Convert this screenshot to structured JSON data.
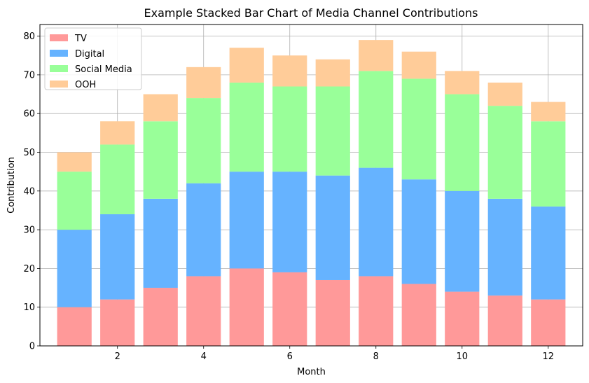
{
  "chart_data": {
    "type": "bar",
    "stacked": true,
    "title": "Example Stacked Bar Chart of Media Channel Contributions",
    "xlabel": "Month",
    "ylabel": "Contribution",
    "x": [
      1,
      2,
      3,
      4,
      5,
      6,
      7,
      8,
      9,
      10,
      11,
      12
    ],
    "x_ticks": [
      2,
      4,
      6,
      8,
      10,
      12
    ],
    "y_ticks": [
      0,
      10,
      20,
      30,
      40,
      50,
      60,
      70,
      80
    ],
    "xlim": [
      0.2,
      12.8
    ],
    "ylim": [
      0,
      83
    ],
    "grid": true,
    "legend_position": "top-left",
    "series": [
      {
        "name": "TV",
        "color": "#ff9999",
        "values": [
          10,
          12,
          15,
          18,
          20,
          19,
          17,
          18,
          16,
          14,
          13,
          12
        ]
      },
      {
        "name": "Digital",
        "color": "#66b3ff",
        "values": [
          20,
          22,
          23,
          24,
          25,
          26,
          27,
          28,
          27,
          26,
          25,
          24
        ]
      },
      {
        "name": "Social Media",
        "color": "#99ff99",
        "values": [
          15,
          18,
          20,
          22,
          23,
          22,
          23,
          25,
          26,
          25,
          24,
          22
        ]
      },
      {
        "name": "OOH",
        "color": "#ffcc99",
        "values": [
          5,
          6,
          7,
          8,
          9,
          8,
          7,
          8,
          7,
          6,
          6,
          5
        ]
      }
    ]
  }
}
